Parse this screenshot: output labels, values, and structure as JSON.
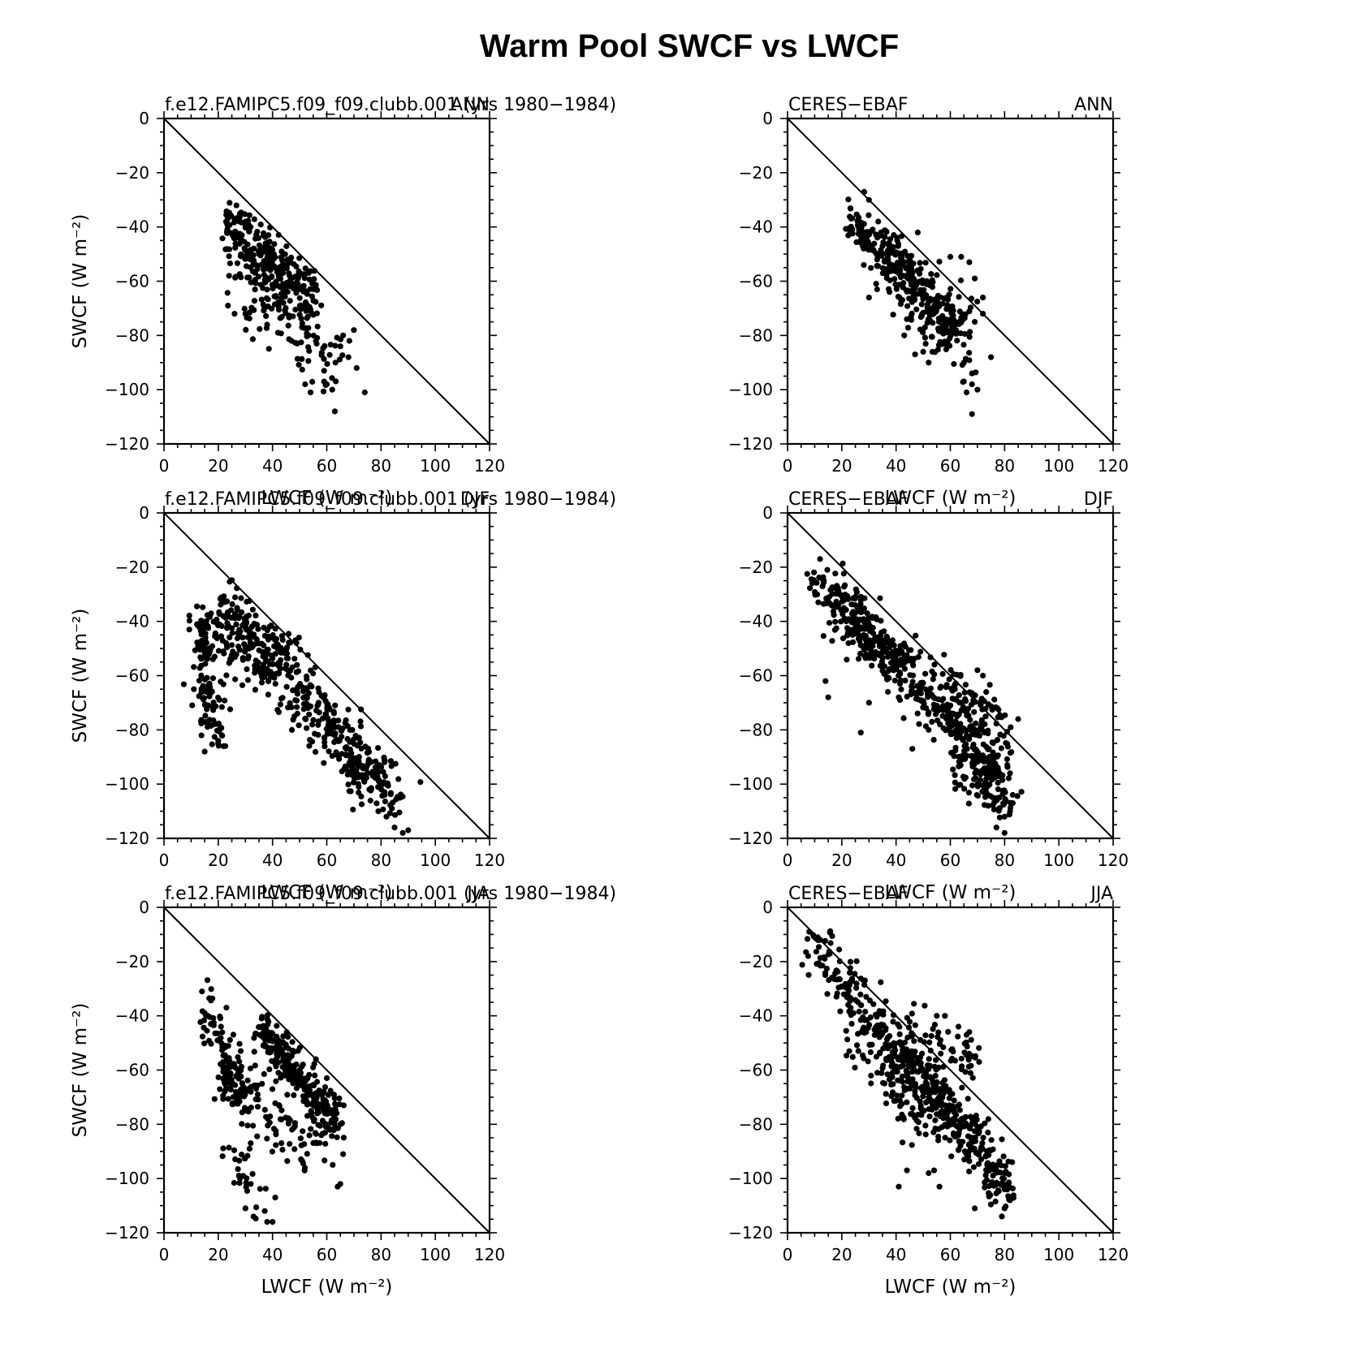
{
  "figure": {
    "title": "Warm Pool SWCF vs LWCF"
  },
  "chart_data": [
    {
      "type": "scatter",
      "case": "f.e12.FAMIPC5.f09_f09.clubb.001",
      "years": "(yrs 1980−1984)",
      "season": "ANN",
      "xlabel": "LWCF (W m⁻²)",
      "ylabel": "SWCF (W m⁻²)",
      "xlim": [
        0,
        120
      ],
      "ylim": [
        -120,
        0
      ],
      "xticks": [
        "0",
        "20",
        "40",
        "60",
        "80",
        "100",
        "120"
      ],
      "yticks": [
        "0",
        "−20",
        "−40",
        "−60",
        "−80",
        "−100",
        "−120"
      ],
      "reference_line": [
        [
          0,
          0
        ],
        [
          120,
          -120
        ]
      ],
      "point_color": "#000000",
      "clusters": [
        {
          "line": [
            [
              23,
              -37
            ],
            [
              56,
              -64
            ]
          ],
          "spread": [
            2.5,
            5.5
          ],
          "n": 170
        },
        {
          "line": [
            [
              24,
              -45
            ],
            [
              54,
              -71
            ]
          ],
          "spread": [
            3.5,
            7
          ],
          "n": 110
        },
        {
          "line": [
            [
              25,
              -56
            ],
            [
              66,
              -90
            ]
          ],
          "spread": [
            4,
            6
          ],
          "n": 60
        },
        {
          "line": [
            [
              28,
              -66
            ],
            [
              64,
              -95
            ]
          ],
          "spread": [
            5,
            7
          ],
          "n": 30
        }
      ],
      "points": [
        [
          24,
          -58
        ],
        [
          26,
          -72
        ],
        [
          30,
          -72
        ],
        [
          37,
          -70
        ],
        [
          47,
          -82
        ],
        [
          56,
          -82
        ],
        [
          59,
          -97
        ],
        [
          62,
          -100
        ],
        [
          63,
          -108
        ],
        [
          74,
          -101
        ],
        [
          71,
          -92
        ],
        [
          68,
          -88
        ],
        [
          66,
          -80
        ],
        [
          52,
          -98
        ],
        [
          54,
          -101
        ],
        [
          59,
          -93
        ],
        [
          60,
          -98
        ],
        [
          38,
          -76
        ],
        [
          42,
          -79
        ],
        [
          44,
          -68
        ],
        [
          70,
          -78
        ],
        [
          65,
          -84
        ]
      ]
    },
    {
      "type": "scatter",
      "case": "CERES−EBAF",
      "season": "ANN",
      "xlabel": "LWCF (W m⁻²)",
      "ylabel": "",
      "xlim": [
        0,
        120
      ],
      "ylim": [
        -120,
        0
      ],
      "xticks": [
        "0",
        "20",
        "40",
        "60",
        "80",
        "100",
        "120"
      ],
      "yticks": [
        "0",
        "−20",
        "−40",
        "−60",
        "−80",
        "−100",
        "−120"
      ],
      "reference_line": [
        [
          0,
          0
        ],
        [
          120,
          -120
        ]
      ],
      "point_color": "#000000",
      "clusters": [
        {
          "line": [
            [
              22,
              -34
            ],
            [
              64,
              -80
            ]
          ],
          "spread": [
            3,
            5.5
          ],
          "n": 240
        },
        {
          "line": [
            [
              30,
              -44
            ],
            [
              66,
              -92
            ]
          ],
          "spread": [
            4,
            5
          ],
          "n": 80
        },
        {
          "line": [
            [
              40,
              -56
            ],
            [
              66,
              -76
            ]
          ],
          "spread": [
            5,
            7
          ],
          "n": 60
        }
      ],
      "points": [
        [
          30,
          -30
        ],
        [
          48,
          -42
        ],
        [
          60,
          -51
        ],
        [
          64,
          -51
        ],
        [
          67,
          -53
        ],
        [
          69,
          -59
        ],
        [
          72,
          -66
        ],
        [
          72,
          -72
        ],
        [
          69,
          -75
        ],
        [
          75,
          -88
        ],
        [
          65,
          -90
        ],
        [
          68,
          -94
        ],
        [
          65,
          -97
        ],
        [
          68,
          -98
        ],
        [
          66,
          -101
        ],
        [
          70,
          -100
        ],
        [
          68,
          -109
        ],
        [
          50,
          -86
        ],
        [
          52,
          -90
        ],
        [
          47,
          -87
        ],
        [
          43,
          -80
        ],
        [
          33,
          -63
        ],
        [
          30,
          -66
        ],
        [
          44,
          -74
        ]
      ]
    },
    {
      "type": "scatter",
      "case": "f.e12.FAMIPC5.f09_f09.clubb.001",
      "years": "(yrs 1980−1984)",
      "season": "DJF",
      "xlabel": "LWCF (W m⁻²)",
      "ylabel": "SWCF (W m⁻²)",
      "xlim": [
        0,
        120
      ],
      "ylim": [
        -120,
        0
      ],
      "xticks": [
        "0",
        "20",
        "40",
        "60",
        "80",
        "100",
        "120"
      ],
      "yticks": [
        "0",
        "−20",
        "−40",
        "−60",
        "−80",
        "−100",
        "−120"
      ],
      "reference_line": [
        [
          0,
          0
        ],
        [
          120,
          -120
        ]
      ],
      "point_color": "#000000",
      "clusters": [
        {
          "line": [
            [
              20,
              -32
            ],
            [
              46,
              -52
            ]
          ],
          "spread": [
            3,
            4
          ],
          "n": 90
        },
        {
          "line": [
            [
              40,
              -50
            ],
            [
              86,
              -108
            ]
          ],
          "spread": [
            4,
            5
          ],
          "n": 200
        },
        {
          "line": [
            [
              30,
              -45
            ],
            [
              78,
              -105
            ]
          ],
          "spread": [
            4,
            5
          ],
          "n": 140
        },
        {
          "line": [
            [
              14,
              -36
            ],
            [
              18,
              -86
            ]
          ],
          "spread": [
            2.5,
            4
          ],
          "n": 130
        },
        {
          "line": [
            [
              20,
              -42
            ],
            [
              38,
              -62
            ]
          ],
          "spread": [
            4,
            7
          ],
          "n": 70
        }
      ],
      "points": [
        [
          11,
          -65
        ],
        [
          15,
          -88
        ],
        [
          22,
          -86
        ],
        [
          20,
          -84
        ],
        [
          85,
          -116
        ],
        [
          88,
          -118
        ],
        [
          90,
          -117
        ],
        [
          82,
          -112
        ],
        [
          84,
          -109
        ],
        [
          87,
          -105
        ],
        [
          79,
          -110
        ],
        [
          76,
          -102
        ],
        [
          74,
          -98
        ]
      ]
    },
    {
      "type": "scatter",
      "case": "CERES−EBAF",
      "season": "DJF",
      "xlabel": "LWCF (W m⁻²)",
      "ylabel": "",
      "xlim": [
        0,
        120
      ],
      "ylim": [
        -120,
        0
      ],
      "xticks": [
        "0",
        "20",
        "40",
        "60",
        "80",
        "100",
        "120"
      ],
      "yticks": [
        "0",
        "−20",
        "−40",
        "−60",
        "−80",
        "−100",
        "−120"
      ],
      "reference_line": [
        [
          0,
          0
        ],
        [
          120,
          -120
        ]
      ],
      "point_color": "#000000",
      "clusters": [
        {
          "line": [
            [
              10,
              -22
            ],
            [
              80,
              -98
            ]
          ],
          "spread": [
            3.5,
            5
          ],
          "n": 420
        },
        {
          "line": [
            [
              14,
              -32
            ],
            [
              44,
              -58
            ]
          ],
          "spread": [
            4,
            6
          ],
          "n": 100
        },
        {
          "line": [
            [
              55,
              -62
            ],
            [
              82,
              -84
            ]
          ],
          "spread": [
            5,
            7
          ],
          "n": 90
        },
        {
          "line": [
            [
              60,
              -88
            ],
            [
              82,
              -110
            ]
          ],
          "spread": [
            4,
            5
          ],
          "n": 80
        }
      ],
      "points": [
        [
          12,
          -17
        ],
        [
          14,
          -62
        ],
        [
          15,
          -68
        ],
        [
          27,
          -81
        ],
        [
          30,
          -70
        ],
        [
          41,
          -68
        ],
        [
          37,
          -66
        ],
        [
          46,
          -87
        ],
        [
          52,
          -80
        ],
        [
          85,
          -76
        ],
        [
          82,
          -96
        ],
        [
          83,
          -104
        ],
        [
          80,
          -118
        ],
        [
          77,
          -116
        ],
        [
          74,
          -108
        ],
        [
          80,
          -112
        ],
        [
          78,
          -105
        ],
        [
          70,
          -58
        ],
        [
          72,
          -60
        ]
      ]
    },
    {
      "type": "scatter",
      "case": "f.e12.FAMIPC5.f09_f09.clubb.001",
      "years": "(yrs 1980−1984)",
      "season": "JJA",
      "xlabel": "LWCF (W m⁻²)",
      "ylabel": "SWCF (W m⁻²)",
      "xlim": [
        0,
        120
      ],
      "ylim": [
        -120,
        0
      ],
      "xticks": [
        "0",
        "20",
        "40",
        "60",
        "80",
        "100",
        "120"
      ],
      "yticks": [
        "0",
        "−20",
        "−40",
        "−60",
        "−80",
        "−100",
        "−120"
      ],
      "reference_line": [
        [
          0,
          0
        ],
        [
          120,
          -120
        ]
      ],
      "point_color": "#000000",
      "clusters": [
        {
          "line": [
            [
              35,
              -44
            ],
            [
              64,
              -80
            ]
          ],
          "spread": [
            2.5,
            4.5
          ],
          "n": 260
        },
        {
          "line": [
            [
              15,
              -34
            ],
            [
              30,
              -74
            ]
          ],
          "spread": [
            3,
            6
          ],
          "n": 90
        },
        {
          "line": [
            [
              20,
              -62
            ],
            [
              35,
              -72
            ]
          ],
          "spread": [
            4,
            6
          ],
          "n": 60
        },
        {
          "line": [
            [
              34,
              -76
            ],
            [
              64,
              -90
            ]
          ],
          "spread": [
            5,
            6
          ],
          "n": 70
        },
        {
          "line": [
            [
              24,
              -86
            ],
            [
              40,
              -112
            ]
          ],
          "spread": [
            3,
            4
          ],
          "n": 25
        }
      ],
      "points": [
        [
          14,
          -31
        ],
        [
          15,
          -39
        ],
        [
          36,
          -41
        ],
        [
          41,
          -107
        ],
        [
          38,
          -116
        ],
        [
          40,
          -116
        ],
        [
          33,
          -114
        ],
        [
          30,
          -111
        ],
        [
          32,
          -102
        ],
        [
          28,
          -100
        ],
        [
          65,
          -102
        ],
        [
          64,
          -103
        ],
        [
          66,
          -91
        ],
        [
          65,
          -80
        ],
        [
          56,
          -56
        ],
        [
          60,
          -63
        ],
        [
          23,
          -37
        ]
      ]
    },
    {
      "type": "scatter",
      "case": "CERES−EBAF",
      "season": "JJA",
      "xlabel": "LWCF (W m⁻²)",
      "ylabel": "",
      "xlim": [
        0,
        120
      ],
      "ylim": [
        -120,
        0
      ],
      "xticks": [
        "0",
        "20",
        "40",
        "60",
        "80",
        "100",
        "120"
      ],
      "yticks": [
        "0",
        "−20",
        "−40",
        "−60",
        "−80",
        "−100",
        "−120"
      ],
      "reference_line": [
        [
          0,
          0
        ],
        [
          120,
          -120
        ]
      ],
      "point_color": "#000000",
      "clusters": [
        {
          "line": [
            [
              9,
              -12
            ],
            [
              82,
              -108
            ]
          ],
          "spread": [
            3.5,
            5
          ],
          "n": 300
        },
        {
          "line": [
            [
              40,
              -50
            ],
            [
              80,
              -100
            ]
          ],
          "spread": [
            3,
            4.5
          ],
          "n": 180
        },
        {
          "line": [
            [
              25,
              -45
            ],
            [
              55,
              -80
            ]
          ],
          "spread": [
            5,
            7
          ],
          "n": 110
        },
        {
          "line": [
            [
              42,
              -44
            ],
            [
              70,
              -58
            ]
          ],
          "spread": [
            5,
            7
          ],
          "n": 60
        }
      ],
      "points": [
        [
          8,
          -9
        ],
        [
          12,
          -12
        ],
        [
          41,
          -103
        ],
        [
          44,
          -97
        ],
        [
          52,
          -98
        ],
        [
          54,
          -97
        ],
        [
          56,
          -103
        ],
        [
          69,
          -111
        ],
        [
          80,
          -111
        ],
        [
          82,
          -108
        ],
        [
          80,
          -104
        ],
        [
          67,
          -46
        ],
        [
          66,
          -47
        ],
        [
          63,
          -44
        ],
        [
          58,
          -40
        ],
        [
          55,
          -40
        ],
        [
          27,
          -36
        ],
        [
          29,
          -33
        ]
      ]
    }
  ]
}
